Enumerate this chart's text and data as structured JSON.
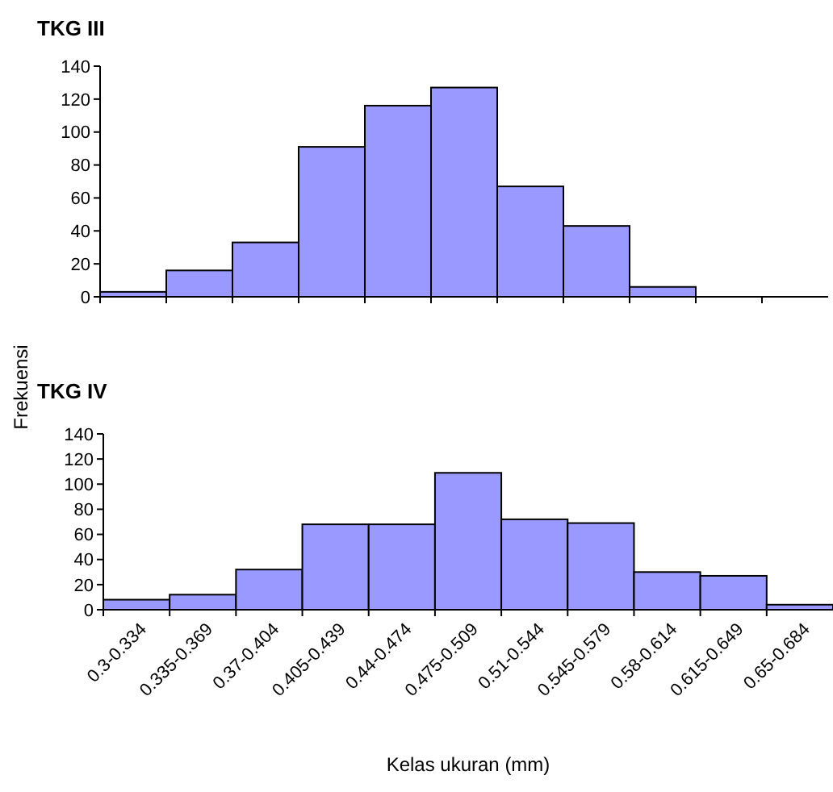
{
  "chart_data": [
    {
      "type": "bar",
      "title": "TKG III",
      "ylabel": "Frekuensi",
      "categories": [
        null,
        null,
        null,
        null,
        null,
        null,
        null,
        null,
        null,
        null,
        null
      ],
      "values": [
        3,
        16,
        33,
        91,
        116,
        127,
        67,
        43,
        6,
        0,
        0
      ],
      "color": "#9999ff",
      "ylim": [
        0,
        140
      ],
      "yticks": [
        0,
        20,
        40,
        60,
        80,
        100,
        120,
        140
      ],
      "tick_labels": "y"
    },
    {
      "type": "bar",
      "title": "TKG IV",
      "xlabel": "Kelas ukuran (mm)",
      "categories": [
        "0.3-0.334",
        "0.335-0.369",
        "0.37-0.404",
        "0.405-0.439",
        "0.44-0.474",
        "0.475-0.509",
        "0.51-0.544",
        "0.545-0.579",
        "0.58-0.614",
        "0.615-0.649",
        "0.65-0.684"
      ],
      "values": [
        8,
        12,
        32,
        68,
        68,
        109,
        72,
        69,
        30,
        27,
        4
      ],
      "color": "#9999ff",
      "ylim": [
        0,
        140
      ],
      "yticks": [
        0,
        20,
        40,
        60,
        80,
        100,
        120,
        140
      ]
    }
  ]
}
